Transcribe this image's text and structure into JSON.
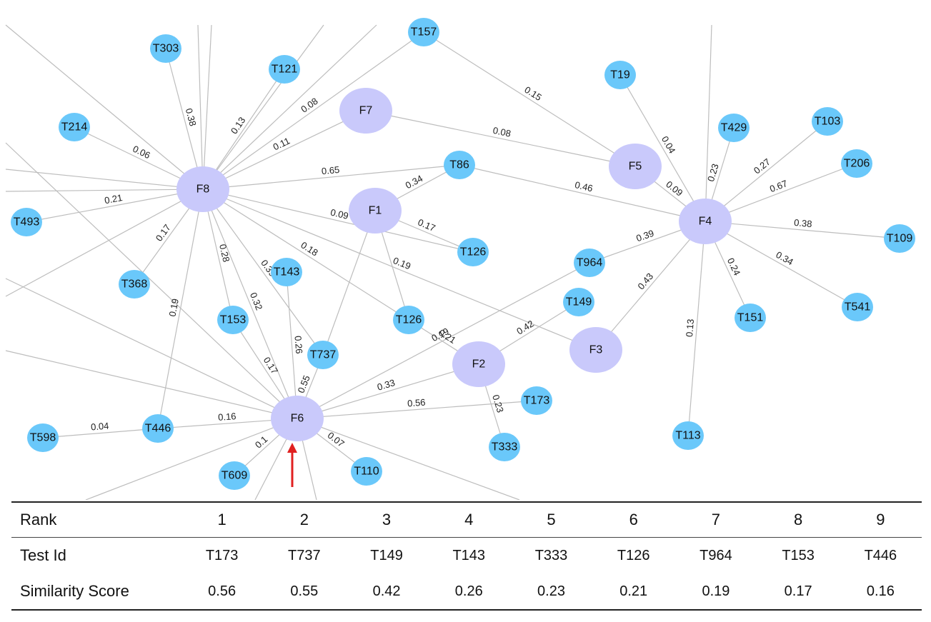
{
  "graph": {
    "nodes": [
      {
        "id": "F1",
        "kind": "feature"
      },
      {
        "id": "F2",
        "kind": "feature"
      },
      {
        "id": "F3",
        "kind": "feature"
      },
      {
        "id": "F4",
        "kind": "feature"
      },
      {
        "id": "F5",
        "kind": "feature"
      },
      {
        "id": "F6",
        "kind": "feature"
      },
      {
        "id": "F7",
        "kind": "feature"
      },
      {
        "id": "F8",
        "kind": "feature"
      },
      {
        "id": "T157",
        "kind": "test"
      },
      {
        "id": "T303",
        "kind": "test"
      },
      {
        "id": "T121",
        "kind": "test"
      },
      {
        "id": "T19",
        "kind": "test"
      },
      {
        "id": "T214",
        "kind": "test"
      },
      {
        "id": "T429",
        "kind": "test"
      },
      {
        "id": "T103",
        "kind": "test"
      },
      {
        "id": "T86",
        "kind": "test"
      },
      {
        "id": "T206",
        "kind": "test"
      },
      {
        "id": "T493",
        "kind": "test"
      },
      {
        "id": "T109",
        "kind": "test"
      },
      {
        "id": "T126a",
        "label": "T126",
        "kind": "test"
      },
      {
        "id": "T964",
        "kind": "test"
      },
      {
        "id": "T143",
        "kind": "test"
      },
      {
        "id": "T368",
        "kind": "test"
      },
      {
        "id": "T541",
        "kind": "test"
      },
      {
        "id": "T149",
        "kind": "test"
      },
      {
        "id": "T151",
        "kind": "test"
      },
      {
        "id": "T153",
        "kind": "test"
      },
      {
        "id": "T126b",
        "label": "T126",
        "kind": "test"
      },
      {
        "id": "T737",
        "kind": "test"
      },
      {
        "id": "T173",
        "kind": "test"
      },
      {
        "id": "T446",
        "kind": "test"
      },
      {
        "id": "T598",
        "kind": "test"
      },
      {
        "id": "T113",
        "kind": "test"
      },
      {
        "id": "T333",
        "kind": "test"
      },
      {
        "id": "T609",
        "kind": "test"
      },
      {
        "id": "T110",
        "kind": "test"
      }
    ],
    "edges": [
      {
        "from": "F8",
        "to": "T303",
        "weight": "0.38"
      },
      {
        "from": "F8",
        "to": "T121",
        "weight": "0.13"
      },
      {
        "from": "F8",
        "to": "T157",
        "weight": "0.08"
      },
      {
        "from": "F8",
        "to": "F7",
        "weight": "0.11"
      },
      {
        "from": "F8",
        "to": "T214",
        "weight": "0.06"
      },
      {
        "from": "F8",
        "to": "T86",
        "weight": "0.65"
      },
      {
        "from": "F8",
        "to": "T493",
        "weight": "0.21"
      },
      {
        "from": "F8",
        "to": "T368",
        "weight": "0.17"
      },
      {
        "from": "F8",
        "to": "T446",
        "weight": "0.19"
      },
      {
        "from": "F8",
        "to": "T153",
        "weight": "0.28"
      },
      {
        "from": "F8",
        "to": "T737",
        "weight": "0.39"
      },
      {
        "from": "F8",
        "to": "T126a",
        "weight": "0.09"
      },
      {
        "from": "F8",
        "to": "T126b",
        "weight": "0.18"
      },
      {
        "from": "F8",
        "to": "F3",
        "weight": "0.19"
      },
      {
        "from": "F8",
        "to": "F6",
        "weight": "0.32"
      },
      {
        "from": "F7",
        "to": "F5",
        "weight": "0.08"
      },
      {
        "from": "T157",
        "to": "F5",
        "weight": "0.15"
      },
      {
        "from": "F1",
        "to": "T86",
        "weight": "0.34"
      },
      {
        "from": "F1",
        "to": "T126a",
        "weight": "0.17"
      },
      {
        "from": "F1",
        "to": "T126b",
        "weight": ""
      },
      {
        "from": "F1",
        "to": "T737",
        "weight": ""
      },
      {
        "from": "T86",
        "to": "F4",
        "weight": "0.46"
      },
      {
        "from": "F5",
        "to": "F4",
        "weight": "0.09"
      },
      {
        "from": "T19",
        "to": "F4",
        "weight": "0.04"
      },
      {
        "from": "F4",
        "to": "T429",
        "weight": "0.23"
      },
      {
        "from": "F4",
        "to": "T103",
        "weight": "0.27"
      },
      {
        "from": "F4",
        "to": "T206",
        "weight": "0.67"
      },
      {
        "from": "F4",
        "to": "T109",
        "weight": "0.38"
      },
      {
        "from": "F4",
        "to": "T541",
        "weight": "0.34"
      },
      {
        "from": "F4",
        "to": "T151",
        "weight": "0.24"
      },
      {
        "from": "F4",
        "to": "T113",
        "weight": "0.13"
      },
      {
        "from": "F4",
        "to": "F3",
        "weight": "0.43"
      },
      {
        "from": "F4",
        "to": "T964",
        "weight": "0.39"
      },
      {
        "from": "T126b",
        "to": "F2",
        "weight": "0.21"
      },
      {
        "from": "F2",
        "to": "T149",
        "weight": "0.42"
      },
      {
        "from": "F2",
        "to": "T333",
        "weight": "0.23"
      },
      {
        "from": "F6",
        "to": "F2",
        "weight": "0.33"
      },
      {
        "from": "F6",
        "to": "T173",
        "weight": "0.56"
      },
      {
        "from": "F6",
        "to": "T737",
        "weight": "0.55"
      },
      {
        "from": "F6",
        "to": "T964",
        "weight": "0.19"
      },
      {
        "from": "F6",
        "to": "T143",
        "weight": "0.26"
      },
      {
        "from": "F6",
        "to": "T153",
        "weight": "0.17"
      },
      {
        "from": "F6",
        "to": "T446",
        "weight": "0.16"
      },
      {
        "from": "F6",
        "to": "T609",
        "weight": "0.1"
      },
      {
        "from": "F6",
        "to": "T110",
        "weight": "0.07"
      },
      {
        "from": "T446",
        "to": "T598",
        "weight": "0.04"
      }
    ],
    "highlight": {
      "node": "F6",
      "marker": "red-up-arrow",
      "color": "#e02020"
    },
    "colors": {
      "feature_node": "#c9c9fb",
      "test_node": "#6ac8fa",
      "edge": "#bdbdbd"
    }
  },
  "table": {
    "row_labels": {
      "rank": "Rank",
      "test_id": "Test Id",
      "score": "Similarity Score"
    },
    "ranks": [
      "1",
      "2",
      "3",
      "4",
      "5",
      "6",
      "7",
      "8",
      "9"
    ],
    "test_ids": [
      "T173",
      "T737",
      "T149",
      "T143",
      "T333",
      "T126",
      "T964",
      "T153",
      "T446"
    ],
    "scores": [
      "0.56",
      "0.55",
      "0.42",
      "0.26",
      "0.23",
      "0.21",
      "0.19",
      "0.17",
      "0.16"
    ]
  }
}
